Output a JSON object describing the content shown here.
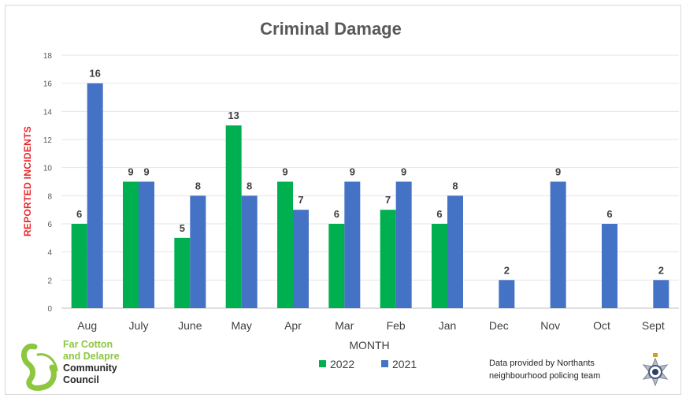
{
  "chart_data": {
    "type": "bar",
    "title": "Criminal Damage",
    "xlabel": "MONTH",
    "ylabel": "REPORTED INCIDENTS",
    "ylim": [
      0,
      18
    ],
    "yticks": [
      0,
      2,
      4,
      6,
      8,
      10,
      12,
      14,
      16,
      18
    ],
    "grid": true,
    "legend_position": "bottom",
    "categories": [
      "Aug",
      "July",
      "June",
      "May",
      "Apr",
      "Mar",
      "Feb",
      "Jan",
      "Dec",
      "Nov",
      "Oct",
      "Sept"
    ],
    "series": [
      {
        "name": "2022",
        "color": "#00b050",
        "values": [
          6,
          9,
          5,
          13,
          9,
          6,
          7,
          6,
          null,
          null,
          null,
          null
        ]
      },
      {
        "name": "2021",
        "color": "#4472c4",
        "values": [
          16,
          9,
          8,
          8,
          7,
          9,
          9,
          8,
          2,
          9,
          6,
          2
        ]
      }
    ]
  },
  "logo": {
    "line1": "Far Cotton",
    "line2": "and Delapre",
    "line3": "Community",
    "line4": "Council",
    "icon": "swan-logo-icon",
    "accent_color": "#8dc63f"
  },
  "source_note": "Data provided by Northants neighbourhood policing team",
  "police_badge_icon": "police-star-badge-icon"
}
